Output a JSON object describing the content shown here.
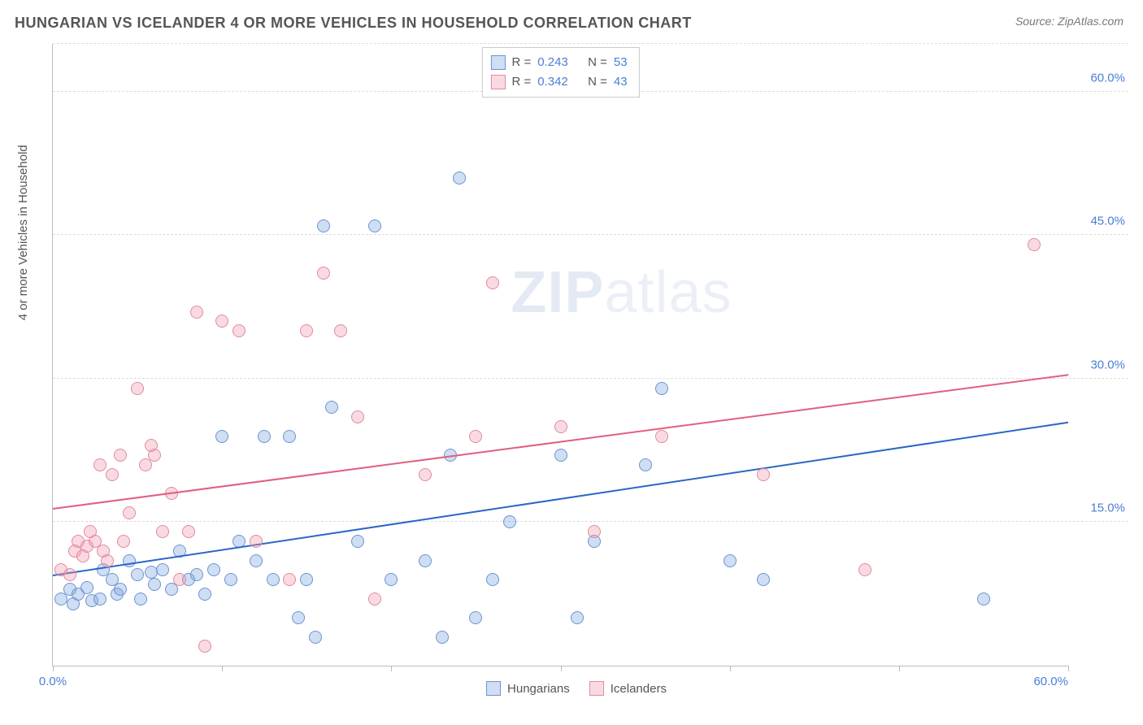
{
  "title": "HUNGARIAN VS ICELANDER 4 OR MORE VEHICLES IN HOUSEHOLD CORRELATION CHART",
  "source": "Source: ZipAtlas.com",
  "y_axis_label": "4 or more Vehicles in Household",
  "watermark_zip": "ZIP",
  "watermark_atlas": "atlas",
  "chart": {
    "type": "scatter",
    "xlim": [
      0,
      60
    ],
    "ylim": [
      0,
      65
    ],
    "x_ticks": [
      0,
      10,
      20,
      30,
      40,
      50,
      60
    ],
    "x_tick_labels": {
      "0": "0.0%",
      "60": "60.0%"
    },
    "y_gridlines": [
      15,
      30,
      45,
      60,
      65
    ],
    "y_tick_labels": {
      "15": "15.0%",
      "30": "30.0%",
      "45": "45.0%",
      "60": "60.0%"
    },
    "background_color": "#ffffff",
    "grid_color": "#dddddd",
    "axis_color": "#bbbbbb",
    "tick_label_color": "#4a7fd6",
    "series": [
      {
        "name": "Hungarians",
        "fill": "rgba(120,160,220,0.35)",
        "stroke": "#6a94d4",
        "trend_color": "#2a66c8",
        "R_label": "R = ",
        "R": "0.243",
        "N_label": "N = ",
        "N": "53",
        "trend": {
          "x1": 0,
          "y1": 9.5,
          "x2": 60,
          "y2": 25.5
        },
        "points": [
          [
            0.5,
            7
          ],
          [
            1,
            8
          ],
          [
            1.2,
            6.5
          ],
          [
            1.5,
            7.5
          ],
          [
            2,
            8.2
          ],
          [
            2.3,
            6.8
          ],
          [
            2.8,
            7
          ],
          [
            3,
            10
          ],
          [
            3.5,
            9
          ],
          [
            3.8,
            7.5
          ],
          [
            4,
            8
          ],
          [
            4.5,
            11
          ],
          [
            5,
            9.5
          ],
          [
            5.2,
            7
          ],
          [
            5.8,
            9.8
          ],
          [
            6,
            8.5
          ],
          [
            6.5,
            10
          ],
          [
            7,
            8
          ],
          [
            7.5,
            12
          ],
          [
            8,
            9
          ],
          [
            8.5,
            9.5
          ],
          [
            9,
            7.5
          ],
          [
            9.5,
            10
          ],
          [
            10,
            24
          ],
          [
            10.5,
            9
          ],
          [
            11,
            13
          ],
          [
            12,
            11
          ],
          [
            12.5,
            24
          ],
          [
            13,
            9
          ],
          [
            14,
            24
          ],
          [
            14.5,
            5
          ],
          [
            15,
            9
          ],
          [
            15.5,
            3
          ],
          [
            16,
            46
          ],
          [
            16.5,
            27
          ],
          [
            18,
            13
          ],
          [
            19,
            46
          ],
          [
            20,
            9
          ],
          [
            22,
            11
          ],
          [
            23,
            3
          ],
          [
            23.5,
            22
          ],
          [
            24,
            51
          ],
          [
            25,
            5
          ],
          [
            26,
            9
          ],
          [
            27,
            15
          ],
          [
            30,
            22
          ],
          [
            31,
            5
          ],
          [
            32,
            13
          ],
          [
            35,
            21
          ],
          [
            36,
            29
          ],
          [
            40,
            11
          ],
          [
            42,
            9
          ],
          [
            55,
            7
          ]
        ]
      },
      {
        "name": "Icelanders",
        "fill": "rgba(240,150,170,0.35)",
        "stroke": "#e18aa0",
        "trend_color": "#e0607f",
        "R_label": "R = ",
        "R": "0.342",
        "N_label": "N = ",
        "N": "43",
        "trend": {
          "x1": 0,
          "y1": 16.5,
          "x2": 60,
          "y2": 30.5
        },
        "points": [
          [
            0.5,
            10
          ],
          [
            1,
            9.5
          ],
          [
            1.3,
            12
          ],
          [
            1.5,
            13
          ],
          [
            1.8,
            11.5
          ],
          [
            2,
            12.5
          ],
          [
            2.2,
            14
          ],
          [
            2.5,
            13
          ],
          [
            2.8,
            21
          ],
          [
            3,
            12
          ],
          [
            3.2,
            11
          ],
          [
            3.5,
            20
          ],
          [
            4,
            22
          ],
          [
            4.2,
            13
          ],
          [
            4.5,
            16
          ],
          [
            5,
            29
          ],
          [
            5.5,
            21
          ],
          [
            5.8,
            23
          ],
          [
            6,
            22
          ],
          [
            6.5,
            14
          ],
          [
            7,
            18
          ],
          [
            7.5,
            9
          ],
          [
            8,
            14
          ],
          [
            8.5,
            37
          ],
          [
            9,
            2
          ],
          [
            10,
            36
          ],
          [
            11,
            35
          ],
          [
            12,
            13
          ],
          [
            14,
            9
          ],
          [
            15,
            35
          ],
          [
            16,
            41
          ],
          [
            17,
            35
          ],
          [
            18,
            26
          ],
          [
            19,
            7
          ],
          [
            22,
            20
          ],
          [
            25,
            24
          ],
          [
            26,
            40
          ],
          [
            30,
            25
          ],
          [
            32,
            14
          ],
          [
            36,
            24
          ],
          [
            42,
            20
          ],
          [
            48,
            10
          ],
          [
            58,
            44
          ]
        ]
      }
    ]
  },
  "legend_bottom": [
    {
      "label": "Hungarians",
      "fill": "rgba(120,160,220,0.35)",
      "stroke": "#6a94d4"
    },
    {
      "label": "Icelanders",
      "fill": "rgba(240,150,170,0.35)",
      "stroke": "#e18aa0"
    }
  ]
}
